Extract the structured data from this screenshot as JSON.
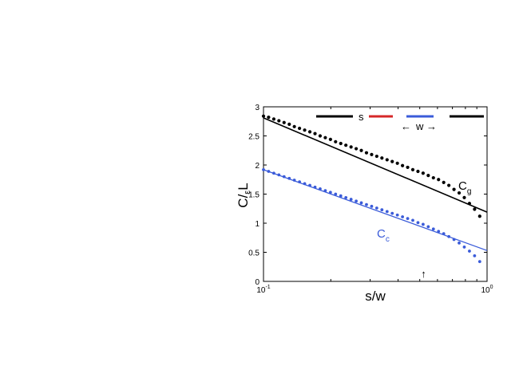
{
  "chart_data": {
    "type": "scatter",
    "title": "",
    "xlabel": "s/w",
    "ylabel": {
      "main": "C/",
      "sub": "ε",
      "tail": "L"
    },
    "x_scale": "log",
    "xlim": [
      0.1,
      1
    ],
    "ylim": [
      0,
      3
    ],
    "x_ticks": [
      {
        "value": 0.1,
        "base": "10",
        "exp": "-1"
      },
      {
        "value": 1,
        "base": "10",
        "exp": "0"
      }
    ],
    "y_ticks": [
      {
        "value": 0,
        "label": "0"
      },
      {
        "value": 0.5,
        "label": "0.5"
      },
      {
        "value": 1,
        "label": "1"
      },
      {
        "value": 1.5,
        "label": "1.5"
      },
      {
        "value": 2,
        "label": "2"
      },
      {
        "value": 2.5,
        "label": "2.5"
      },
      {
        "value": 3,
        "label": "3"
      }
    ],
    "grid": false,
    "series": [
      {
        "label_main": "C",
        "label_sub": "g",
        "color": "#000000",
        "line": {
          "x": [
            0.1,
            1
          ],
          "y": [
            2.81,
            1.19
          ]
        },
        "points": {
          "x": [
            0.1,
            0.1054,
            0.1112,
            0.1172,
            0.1236,
            0.1304,
            0.1374,
            0.1449,
            0.1528,
            0.1612,
            0.17,
            0.1792,
            0.189,
            0.1993,
            0.2101,
            0.2216,
            0.2336,
            0.2464,
            0.2598,
            0.2739,
            0.2888,
            0.3046,
            0.3211,
            0.3386,
            0.3571,
            0.3765,
            0.397,
            0.4186,
            0.4414,
            0.4654,
            0.4908,
            0.5175,
            0.5457,
            0.5754,
            0.6067,
            0.6398,
            0.6746,
            0.7114,
            0.7501,
            0.791,
            0.834,
            0.8794,
            0.9273
          ],
          "y": [
            2.84,
            2.82,
            2.79,
            2.76,
            2.73,
            2.7,
            2.66,
            2.63,
            2.6,
            2.57,
            2.54,
            2.5,
            2.47,
            2.44,
            2.4,
            2.37,
            2.34,
            2.31,
            2.28,
            2.25,
            2.21,
            2.18,
            2.15,
            2.12,
            2.09,
            2.06,
            2.03,
            1.99,
            1.96,
            1.92,
            1.89,
            1.86,
            1.82,
            1.78,
            1.75,
            1.7,
            1.65,
            1.58,
            1.52,
            1.44,
            1.34,
            1.24,
            1.12
          ]
        }
      },
      {
        "label_main": "C",
        "label_sub": "c",
        "color": "#3a5bd9",
        "line": {
          "x": [
            0.1,
            1
          ],
          "y": [
            1.92,
            0.53
          ]
        },
        "points": {
          "x": [
            0.1,
            0.1054,
            0.1112,
            0.1172,
            0.1236,
            0.1304,
            0.1374,
            0.1449,
            0.1528,
            0.1612,
            0.17,
            0.1792,
            0.189,
            0.1993,
            0.2101,
            0.2216,
            0.2336,
            0.2464,
            0.2598,
            0.2739,
            0.2888,
            0.3046,
            0.3211,
            0.3386,
            0.3571,
            0.3765,
            0.397,
            0.4186,
            0.4414,
            0.4654,
            0.4908,
            0.5175,
            0.5457,
            0.5754,
            0.6067,
            0.6398,
            0.6746,
            0.7114,
            0.7501,
            0.791,
            0.834,
            0.8794,
            0.9273
          ],
          "y": [
            1.92,
            1.89,
            1.86,
            1.83,
            1.8,
            1.77,
            1.74,
            1.71,
            1.68,
            1.65,
            1.62,
            1.59,
            1.56,
            1.53,
            1.5,
            1.47,
            1.44,
            1.41,
            1.38,
            1.35,
            1.32,
            1.29,
            1.26,
            1.23,
            1.2,
            1.17,
            1.14,
            1.11,
            1.08,
            1.05,
            1.01,
            0.98,
            0.94,
            0.9,
            0.86,
            0.82,
            0.77,
            0.72,
            0.66,
            0.59,
            0.52,
            0.44,
            0.34
          ]
        }
      }
    ],
    "inset": {
      "s_label": "s",
      "w_label": "w",
      "left_arrow": "←",
      "right_arrow": "→",
      "bar_colors": [
        "#000000",
        "#d62728",
        "#3a5bd9",
        "#000000"
      ]
    },
    "marker": {
      "x": 0.52,
      "glyph": "↑"
    }
  }
}
